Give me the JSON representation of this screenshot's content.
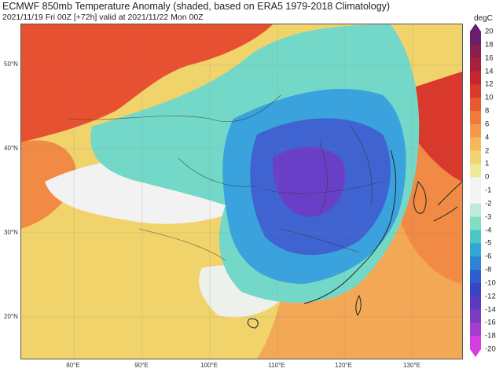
{
  "header": {
    "title": "ECMWF 850mb Temperature Anomaly (shaded, based on ERA5 1979-2018 Climatology)",
    "subtitle": "2021/11/19 Fri 00Z [+72h] valid at 2021/11/22 Mon 00Z"
  },
  "map": {
    "field": "850mb Temperature Anomaly",
    "lat_labels": [
      "50°N",
      "40°N",
      "30°N",
      "20°N"
    ],
    "lon_labels": [
      "80°E",
      "90°E",
      "100°E",
      "110°E",
      "120°E",
      "130°E"
    ],
    "regions": [
      {
        "id": "cold-core",
        "anomaly": -12,
        "color": "#6a3fc8"
      },
      {
        "id": "cold-center",
        "anomaly": -8,
        "color": "#3f63d0"
      },
      {
        "id": "cold-mid",
        "anomaly": -4,
        "color": "#3aa2dc"
      },
      {
        "id": "cold-edge",
        "anomaly": -2,
        "color": "#74d8c8"
      },
      {
        "id": "neutral",
        "anomaly": 0,
        "color": "#f2f2f2"
      },
      {
        "id": "warm-mongolia",
        "anomaly": 12,
        "color": "#e85032"
      },
      {
        "id": "warm-northeast",
        "anomaly": 12,
        "color": "#e85032"
      },
      {
        "id": "warm-sea",
        "anomaly": 6,
        "color": "#f3a052"
      }
    ]
  },
  "colorbar": {
    "unit": "degC",
    "ticks": [
      "20",
      "18",
      "16",
      "14",
      "12",
      "10",
      "8",
      "6",
      "4",
      "2",
      "1",
      "0",
      "-1",
      "-2",
      "-3",
      "-4",
      "-5",
      "-6",
      "-8",
      "-10",
      "-12",
      "-14",
      "-16",
      "-18",
      "-20"
    ],
    "colors": [
      "#6b1d6e",
      "#8a1f4e",
      "#a8213a",
      "#c4262d",
      "#da3a2c",
      "#e85a32",
      "#f07a3c",
      "#f49a4a",
      "#f6b85a",
      "#f2d272",
      "#eeea9a",
      "#f4f4f4",
      "#f4f4f4",
      "#bdebd9",
      "#82dfc4",
      "#4cc7c6",
      "#32a6d6",
      "#2f82d4",
      "#2e5fcc",
      "#3946c4",
      "#5a3abf",
      "#7c3cc2",
      "#a53ece",
      "#d53fe0"
    ]
  }
}
